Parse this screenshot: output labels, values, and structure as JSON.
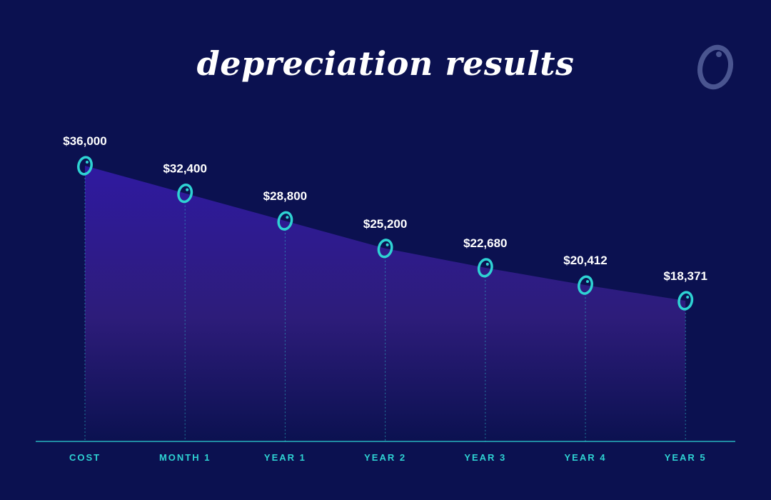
{
  "title": "depreciation results",
  "colors": {
    "background": "#0b1150",
    "area_top": "#2f1aa0",
    "area_bottom": "#0b1150",
    "marker": "#2ed3d3",
    "axis": "#2ed3d3",
    "label": "#ffffff",
    "logo": "#4a5590"
  },
  "logo_icon": "o-logo-icon",
  "chart_data": {
    "type": "area",
    "categories": [
      "COST",
      "MONTH 1",
      "YEAR 1",
      "YEAR 2",
      "YEAR 3",
      "YEAR 4",
      "YEAR 5"
    ],
    "values": [
      36000,
      32400,
      28800,
      25200,
      22680,
      20412,
      18371
    ],
    "value_labels": [
      "$36,000",
      "$32,400",
      "$28,800",
      "$25,200",
      "$22,680",
      "$20,412",
      "$18,371"
    ],
    "ylim": [
      0,
      40000
    ],
    "grid": false,
    "xlabel": "",
    "ylabel": ""
  }
}
